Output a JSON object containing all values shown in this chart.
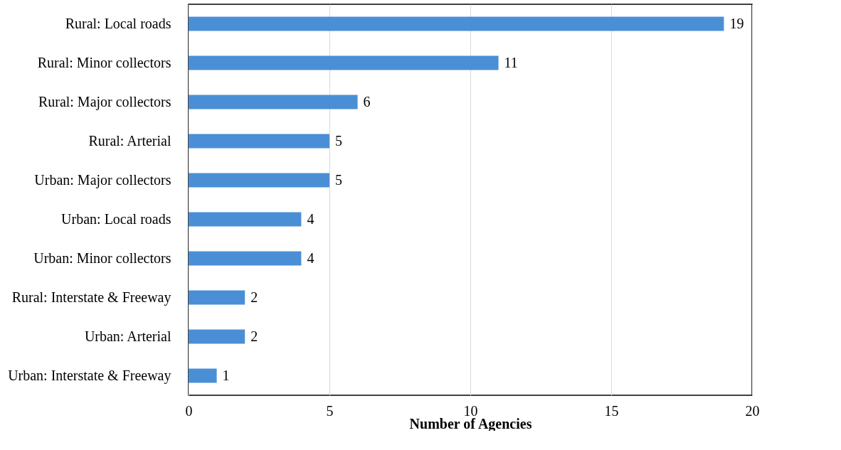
{
  "chart_data": {
    "type": "bar",
    "orientation": "horizontal",
    "xlabel": "Number of Agencies",
    "categories": [
      "Rural: Local roads",
      "Rural: Minor collectors",
      "Rural: Major collectors",
      "Rural: Arterial",
      "Urban: Major collectors",
      "Urban: Local roads",
      "Urban: Minor collectors",
      "Rural: Interstate & Freeway",
      "Urban: Arterial",
      "Urban: Interstate & Freeway"
    ],
    "values": [
      19,
      11,
      6,
      5,
      5,
      4,
      4,
      2,
      2,
      1
    ],
    "color": "#4a8fd6",
    "xlim": [
      0,
      20
    ],
    "xticks": [
      0,
      5,
      10,
      15,
      20
    ],
    "grid": "x",
    "data_labels": true
  }
}
